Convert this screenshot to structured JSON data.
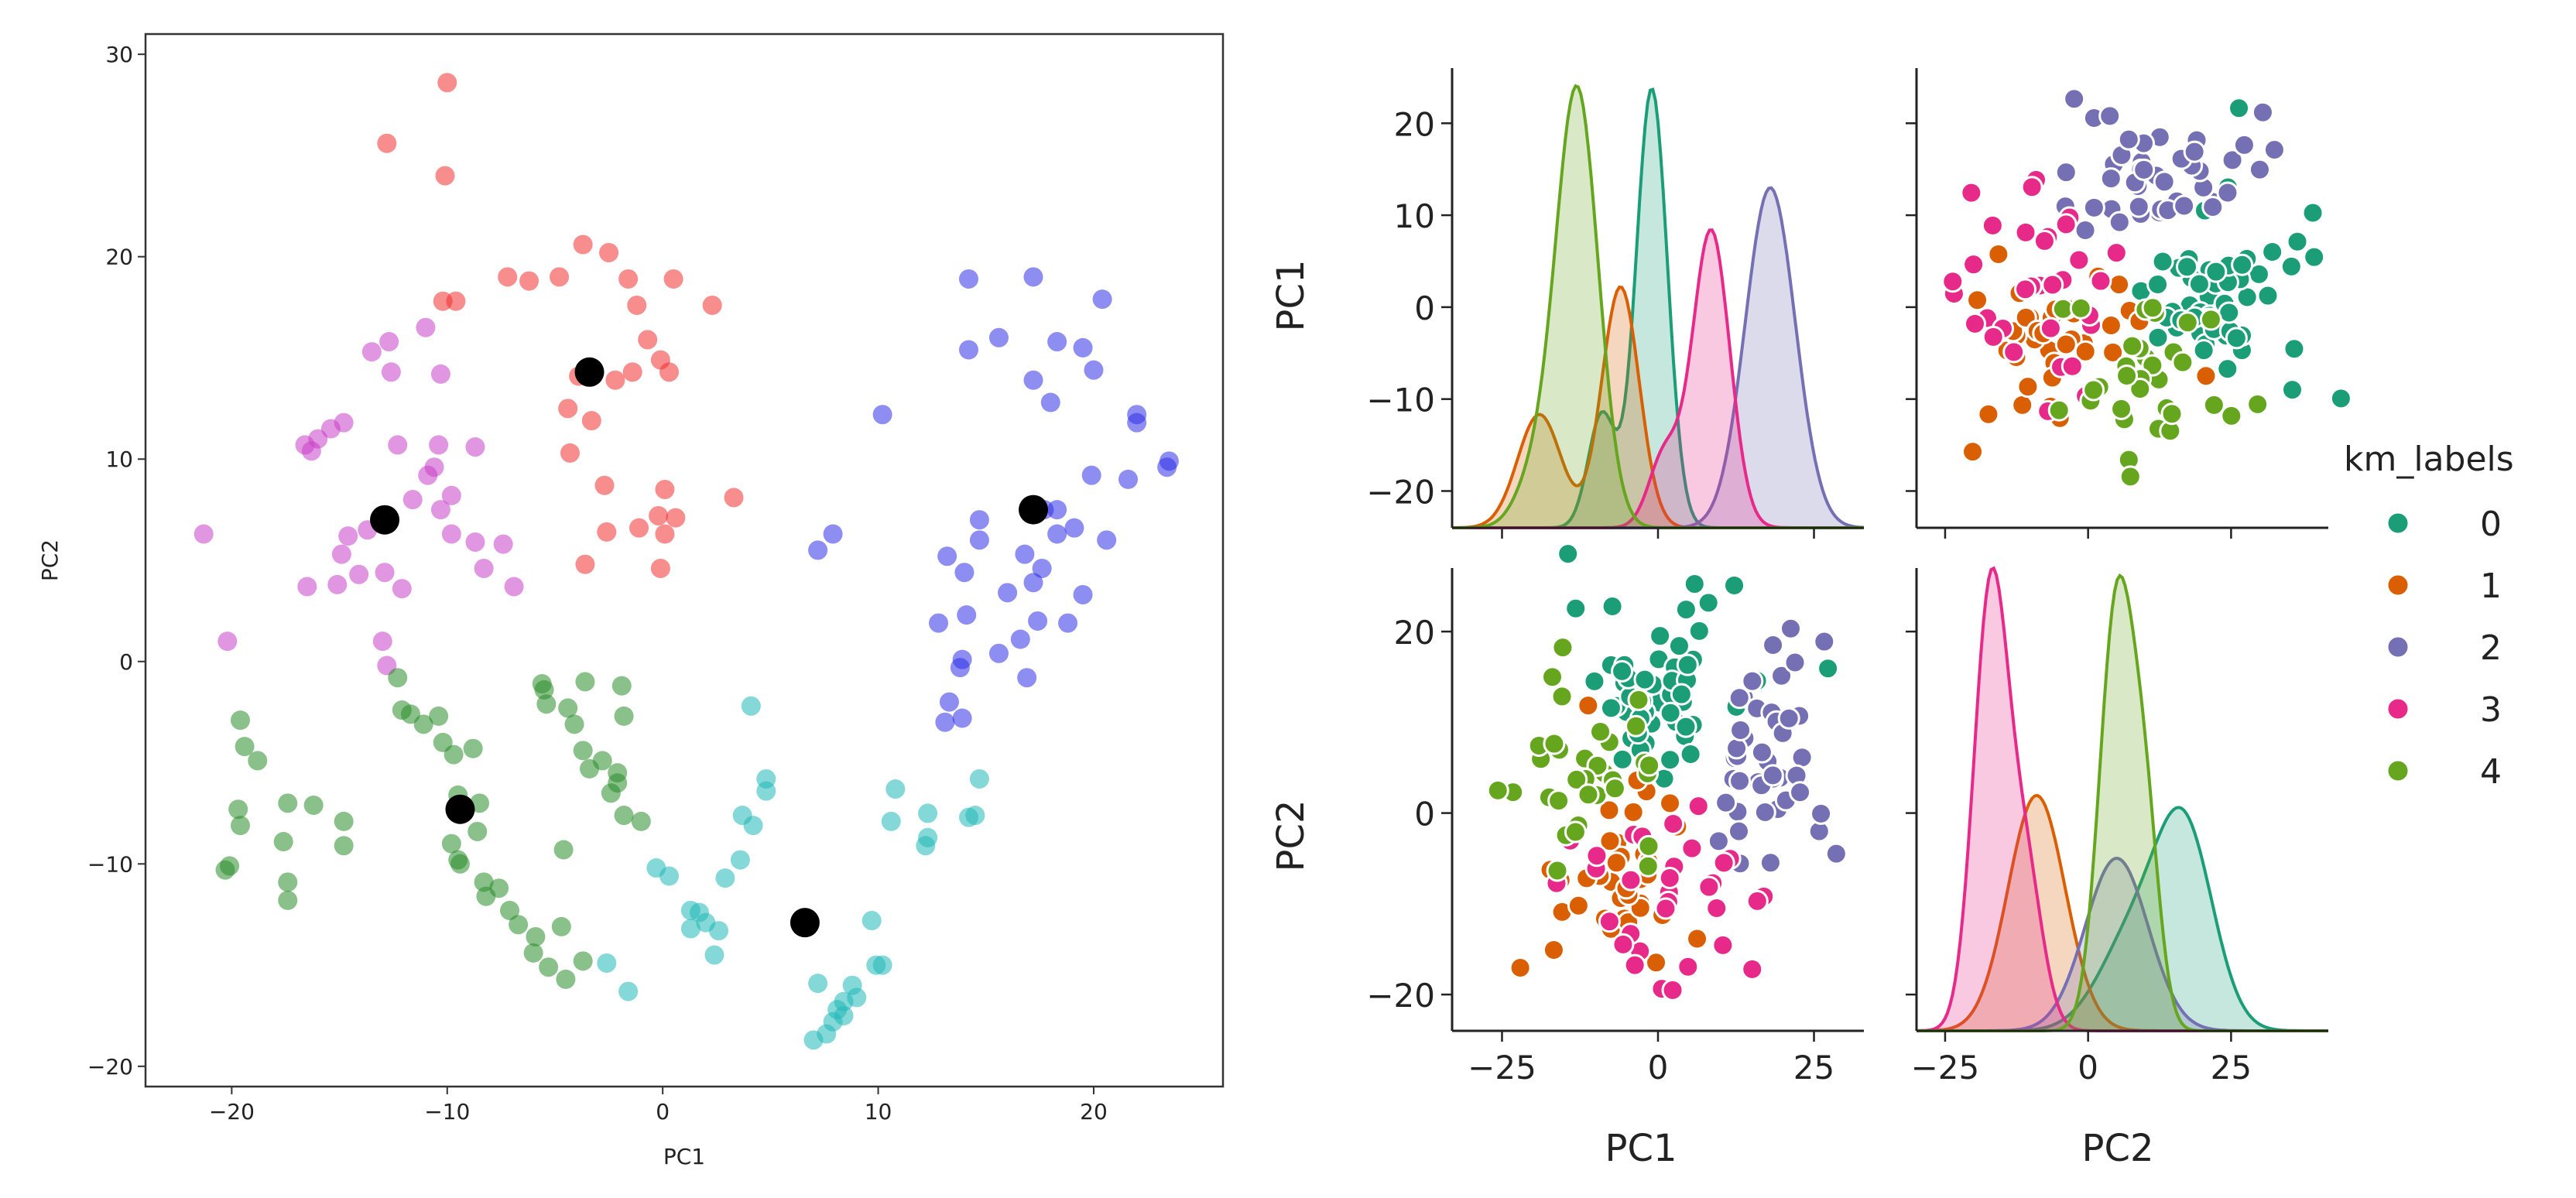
{
  "chart_data": [
    {
      "type": "scatter",
      "id": "kmeans_scatter",
      "xlabel": "PC1",
      "ylabel": "PC2",
      "xlim": [
        -24,
        26
      ],
      "ylim": [
        -21,
        31
      ],
      "xticks": [
        -20,
        -10,
        0,
        10,
        20
      ],
      "yticks": [
        -20,
        -10,
        0,
        10,
        20,
        30
      ],
      "grid": false,
      "series": [
        {
          "name": "red",
          "color": "#f03030",
          "points": [
            [
              -10,
              28.6
            ],
            [
              -12.8,
              25.6
            ],
            [
              -10.1,
              24
            ],
            [
              -3.7,
              20.6
            ],
            [
              -4.8,
              19
            ],
            [
              -2.5,
              20.2
            ],
            [
              -1.6,
              18.9
            ],
            [
              0.5,
              18.9
            ],
            [
              -6.2,
              18.8
            ],
            [
              -7.2,
              19
            ],
            [
              -10.2,
              17.8
            ],
            [
              -9.6,
              17.8
            ],
            [
              -1.2,
              17.6
            ],
            [
              2.3,
              17.6
            ],
            [
              -0.7,
              15.9
            ],
            [
              -1.4,
              14.3
            ],
            [
              -0.1,
              14.9
            ],
            [
              0.3,
              14.3
            ],
            [
              -2.2,
              13.9
            ],
            [
              -3.9,
              14.1
            ],
            [
              -4.4,
              12.5
            ],
            [
              -3.3,
              11.9
            ],
            [
              -4.3,
              10.3
            ],
            [
              -2.7,
              8.7
            ],
            [
              0.1,
              8.5
            ],
            [
              -0.2,
              7.2
            ],
            [
              0.6,
              7.1
            ],
            [
              -1.1,
              6.6
            ],
            [
              -2.6,
              6.4
            ],
            [
              -3.6,
              4.8
            ],
            [
              0.1,
              6.3
            ],
            [
              -0.1,
              4.6
            ],
            [
              3.3,
              8.1
            ]
          ]
        },
        {
          "name": "magenta",
          "color": "#c840c8",
          "points": [
            [
              -12.7,
              15.8
            ],
            [
              -13.5,
              15.3
            ],
            [
              -11,
              16.5
            ],
            [
              -10.3,
              14.2
            ],
            [
              -12.6,
              14.3
            ],
            [
              -15.4,
              11.5
            ],
            [
              -14.8,
              11.8
            ],
            [
              -16,
              11
            ],
            [
              -16.3,
              10.4
            ],
            [
              -16.6,
              10.7
            ],
            [
              -12.3,
              10.7
            ],
            [
              -10.4,
              10.7
            ],
            [
              -10.6,
              9.6
            ],
            [
              -10.9,
              9.2
            ],
            [
              -8.7,
              10.6
            ],
            [
              -9.8,
              8.2
            ],
            [
              -11.6,
              8
            ],
            [
              -10.3,
              7.5
            ],
            [
              -9.8,
              6.3
            ],
            [
              -8.7,
              5.9
            ],
            [
              -8.3,
              4.6
            ],
            [
              -7.4,
              5.8
            ],
            [
              -6.9,
              3.7
            ],
            [
              -13.7,
              6.5
            ],
            [
              -14.6,
              6.2
            ],
            [
              -14.9,
              5.3
            ],
            [
              -14.1,
              4.3
            ],
            [
              -12.9,
              4.4
            ],
            [
              -12.1,
              3.6
            ],
            [
              -15.1,
              3.8
            ],
            [
              -16.5,
              3.7
            ],
            [
              -21.3,
              6.3
            ],
            [
              -20.2,
              1
            ],
            [
              -13,
              1
            ],
            [
              -12.8,
              -0.2
            ]
          ]
        },
        {
          "name": "blue",
          "color": "#3030e8",
          "points": [
            [
              14.2,
              18.9
            ],
            [
              17.2,
              19
            ],
            [
              20.4,
              17.9
            ],
            [
              15.6,
              16
            ],
            [
              18.3,
              15.8
            ],
            [
              14.2,
              15.4
            ],
            [
              19.5,
              15.5
            ],
            [
              20,
              14.4
            ],
            [
              17.2,
              13.9
            ],
            [
              18,
              12.8
            ],
            [
              22,
              12.2
            ],
            [
              22,
              11.8
            ],
            [
              10.2,
              12.2
            ],
            [
              23.5,
              9.9
            ],
            [
              23.4,
              9.6
            ],
            [
              19.9,
              9.2
            ],
            [
              21.6,
              9
            ],
            [
              17.7,
              7.5
            ],
            [
              18.3,
              7.5
            ],
            [
              14.7,
              7
            ],
            [
              19.1,
              6.6
            ],
            [
              18.3,
              6.3
            ],
            [
              20.6,
              6
            ],
            [
              14.7,
              6
            ],
            [
              16.8,
              5.3
            ],
            [
              13.2,
              5.2
            ],
            [
              17.6,
              4.6
            ],
            [
              14,
              4.4
            ],
            [
              17.2,
              3.9
            ],
            [
              16,
              3.4
            ],
            [
              19.5,
              3.3
            ],
            [
              14.1,
              2.3
            ],
            [
              12.8,
              1.9
            ],
            [
              17.4,
              2
            ],
            [
              16.6,
              1.1
            ],
            [
              18.8,
              1.9
            ],
            [
              15.6,
              0.4
            ],
            [
              13.9,
              0.1
            ],
            [
              13.8,
              -0.3
            ],
            [
              16.9,
              -0.8
            ],
            [
              13.3,
              -2
            ],
            [
              13.9,
              -2.8
            ],
            [
              13.1,
              -3
            ],
            [
              7.2,
              5.5
            ],
            [
              7.9,
              6.3
            ]
          ]
        },
        {
          "name": "green",
          "color": "#2a8c2a",
          "points": [
            [
              -19.6,
              -2.9
            ],
            [
              -19.4,
              -4.2
            ],
            [
              -18.8,
              -4.9
            ],
            [
              -17.4,
              -7
            ],
            [
              -16.2,
              -7.1
            ],
            [
              -19.7,
              -7.3
            ],
            [
              -14.8,
              -7.9
            ],
            [
              -14.8,
              -9.1
            ],
            [
              -19.6,
              -8.1
            ],
            [
              -17.6,
              -8.9
            ],
            [
              -20.1,
              -10.1
            ],
            [
              -20.3,
              -10.3
            ],
            [
              -17.4,
              -10.9
            ],
            [
              -17.4,
              -11.8
            ],
            [
              -12.3,
              -0.8
            ],
            [
              -12.1,
              -2.4
            ],
            [
              -11.7,
              -2.6
            ],
            [
              -10.4,
              -2.7
            ],
            [
              -11.1,
              -3.1
            ],
            [
              -10.2,
              -4
            ],
            [
              -8.8,
              -4.3
            ],
            [
              -9.7,
              -4.6
            ],
            [
              -9.5,
              -6.6
            ],
            [
              -8.5,
              -7
            ],
            [
              -8.6,
              -8.4
            ],
            [
              -9.8,
              -9
            ],
            [
              -9.5,
              -9.8
            ],
            [
              -9.4,
              -10
            ],
            [
              -8.3,
              -10.9
            ],
            [
              -7.6,
              -11.2
            ],
            [
              -8.2,
              -11.6
            ],
            [
              -7.1,
              -12.3
            ],
            [
              -6.7,
              -13
            ],
            [
              -5.9,
              -13.6
            ],
            [
              -4.7,
              -13.1
            ],
            [
              -6,
              -14.4
            ],
            [
              -5.3,
              -15.1
            ],
            [
              -4.5,
              -15.7
            ],
            [
              -3.7,
              -14.8
            ],
            [
              -5.5,
              -1.4
            ],
            [
              -5.6,
              -1.1
            ],
            [
              -5.4,
              -2.1
            ],
            [
              -4.4,
              -2.3
            ],
            [
              -3.6,
              -1
            ],
            [
              -4.1,
              -3.1
            ],
            [
              -3.7,
              -4.4
            ],
            [
              -2.8,
              -4.9
            ],
            [
              -3.4,
              -5.3
            ],
            [
              -2.1,
              -6
            ],
            [
              -2.4,
              -6.5
            ],
            [
              -1.8,
              -7.6
            ],
            [
              -1,
              -7.9
            ],
            [
              -4.6,
              -9.3
            ],
            [
              -1.9,
              -1.2
            ],
            [
              -1.8,
              -2.7
            ],
            [
              -2.1,
              -5.5
            ]
          ]
        },
        {
          "name": "cyan",
          "color": "#20b8b8",
          "points": [
            [
              4.1,
              -2.2
            ],
            [
              4.8,
              -5.8
            ],
            [
              4.8,
              -6.4
            ],
            [
              3.7,
              -7.6
            ],
            [
              4.2,
              -8.1
            ],
            [
              14.7,
              -5.8
            ],
            [
              14.5,
              -7.6
            ],
            [
              14.2,
              -7.7
            ],
            [
              10.8,
              -6.3
            ],
            [
              10.6,
              -7.9
            ],
            [
              12.3,
              -7.5
            ],
            [
              12.3,
              -8.7
            ],
            [
              12.2,
              -9.1
            ],
            [
              -0.3,
              -10.2
            ],
            [
              0.3,
              -10.6
            ],
            [
              2.9,
              -10.7
            ],
            [
              3.6,
              -9.8
            ],
            [
              1.3,
              -12.3
            ],
            [
              1.7,
              -12.4
            ],
            [
              2,
              -12.9
            ],
            [
              1.3,
              -13.2
            ],
            [
              2.6,
              -13.3
            ],
            [
              2.4,
              -14.5
            ],
            [
              -2.6,
              -14.9
            ],
            [
              -1.6,
              -16.3
            ],
            [
              7.2,
              -15.9
            ],
            [
              8.8,
              -16
            ],
            [
              9,
              -16.6
            ],
            [
              8.4,
              -16.8
            ],
            [
              8.4,
              -17.5
            ],
            [
              8.1,
              -17.2
            ],
            [
              7.9,
              -17.8
            ],
            [
              7.6,
              -18.4
            ],
            [
              7,
              -18.7
            ],
            [
              9.9,
              -15
            ],
            [
              10.2,
              -15
            ],
            [
              9.7,
              -12.8
            ]
          ]
        },
        {
          "name": "centroid",
          "color": "#000000",
          "points": [
            [
              -3.4,
              14.3
            ],
            [
              -12.9,
              7
            ],
            [
              17.2,
              7.5
            ],
            [
              -9.4,
              -7.3
            ],
            [
              6.6,
              -12.9
            ]
          ]
        }
      ]
    },
    {
      "type": "pairplot",
      "id": "km_pairplot",
      "variables": [
        "PC1",
        "PC2"
      ],
      "hue": "km_labels",
      "legend_title": "km_labels",
      "legend_labels": [
        "0",
        "1",
        "2",
        "3",
        "4"
      ],
      "palette": [
        "#1b9e77",
        "#d95f02",
        "#7570b3",
        "#e7298a",
        "#66a61e"
      ],
      "x_ticks": [
        -25,
        0,
        25
      ],
      "y_ticks_pc1": [
        -20,
        -10,
        0,
        10,
        20
      ],
      "y_ticks_pc2": [
        -20,
        0,
        20
      ],
      "pc1_range": [
        -33,
        33
      ],
      "pc2_range": [
        -24,
        27
      ],
      "diag_label_range": [
        -24,
        26
      ],
      "pc2_diag_range": [
        -30,
        42
      ],
      "kde_pc1": [
        {
          "label": "0",
          "peaks": [
            [
              -1,
              0.155,
              2.5
            ],
            [
              -9,
              0.04,
              2.2
            ]
          ]
        },
        {
          "label": "1",
          "peaks": [
            [
              -6,
              0.085,
              3
            ],
            [
              -19,
              0.04,
              3.5
            ]
          ]
        },
        {
          "label": "2",
          "peaks": [
            [
              18,
              0.12,
              4
            ]
          ]
        },
        {
          "label": "3",
          "peaks": [
            [
              8.5,
              0.105,
              3
            ],
            [
              1,
              0.025,
              2.5
            ]
          ]
        },
        {
          "label": "4",
          "peaks": [
            [
              -13,
              0.155,
              3.4
            ],
            [
              -20,
              0.015,
              3
            ]
          ]
        }
      ],
      "kde_pc2": [
        {
          "label": "0",
          "peaks": [
            [
              17,
              0.06,
              5
            ],
            [
              8,
              0.03,
              6
            ]
          ]
        },
        {
          "label": "1",
          "peaks": [
            [
              -9,
              0.075,
              5
            ]
          ]
        },
        {
          "label": "2",
          "peaks": [
            [
              5,
              0.055,
              5.5
            ]
          ]
        },
        {
          "label": "3",
          "peaks": [
            [
              -17,
              0.14,
              3
            ],
            [
              -11,
              0.05,
              3
            ]
          ]
        },
        {
          "label": "4",
          "peaks": [
            [
              5,
              0.135,
              3
            ],
            [
              10,
              0.06,
              2.5
            ]
          ]
        }
      ]
    }
  ]
}
